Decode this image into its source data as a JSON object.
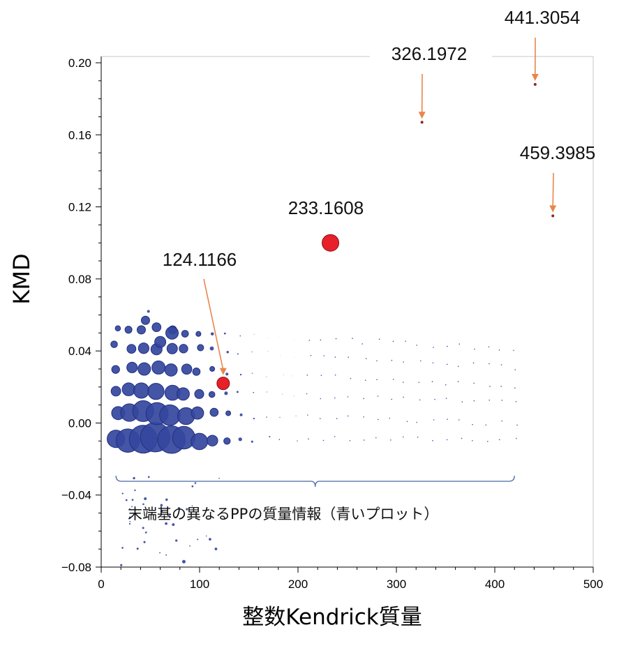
{
  "chart_data": {
    "type": "scatter",
    "xlabel": "整数Kendrick質量",
    "ylabel": "KMD",
    "xlim": [
      0,
      500
    ],
    "ylim": [
      -0.08,
      0.2
    ],
    "x_ticks": [
      "0",
      "100",
      "200",
      "300",
      "400",
      "500"
    ],
    "y_ticks": [
      "-0.08",
      "-0.04",
      "0.00",
      "0.04",
      "0.08",
      "0.12",
      "0.16",
      "0.20"
    ],
    "grid": false,
    "colors": {
      "blue_points": "#34469e",
      "blue_edge": "#223080",
      "red_points": "#e8202a",
      "red_edge": "#8a1010",
      "arrows": "#e8864a",
      "brace": "#4a68a8",
      "frame": "#c8c8c8"
    },
    "highlighted_points": [
      {
        "label": "124.1166",
        "x": 124,
        "y": 0.022,
        "size": "medium"
      },
      {
        "label": "233.1608",
        "x": 233,
        "y": 0.1,
        "size": "large"
      },
      {
        "label": "326.1972",
        "x": 326,
        "y": 0.167,
        "size": "tiny"
      },
      {
        "label": "441.3054",
        "x": 441,
        "y": 0.188,
        "size": "tiny"
      },
      {
        "label": "459.3985",
        "x": 459,
        "y": 0.115,
        "size": "tiny"
      }
    ],
    "blue_series_description_label": "末端基の異なるPPの質量情報（青いプロット）",
    "brace_range_x": [
      15,
      420
    ]
  }
}
